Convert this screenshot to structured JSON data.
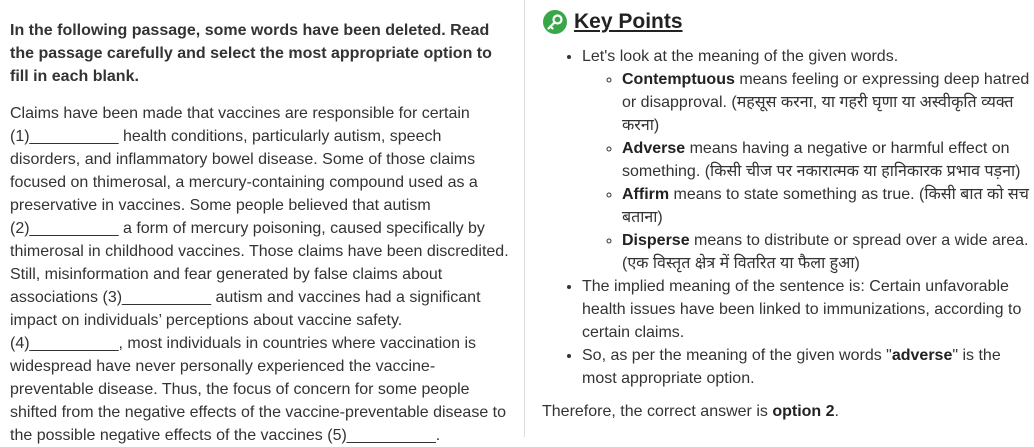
{
  "left": {
    "instruction": "In the following passage, some words have been deleted. Read the passage carefully and select the most appropriate option to fill in each blank.",
    "passage_lines": [
      "Claims have been made that vaccines are responsible for certain",
      "(1)__________ health conditions, particularly autism, speech",
      "disorders, and inflammatory bowel disease. Some of those claims",
      "focused on thimerosal, a mercury-containing compound used as a",
      "preservative in vaccines. Some people believed that autism",
      "(2)__________ a form of mercury poisoning, caused specifically by",
      "thimerosal in childhood vaccines. Those claims have been discredited.",
      "Still, misinformation and fear generated by false claims about",
      "associations (3)__________ autism and vaccines had a significant",
      "impact on individuals’ perceptions about vaccine safety.",
      "(4)__________, most individuals in countries where vaccination is",
      "widespread have never personally experienced the vaccine-",
      "preventable disease. Thus, the focus of concern for some people",
      "shifted from the negative effects of the vaccine-preventable disease to",
      "the possible negative effects of the vaccines (5)__________."
    ]
  },
  "key_points": {
    "title": "Key Points",
    "items": [
      {
        "segments": [
          {
            "text": "Let's look at the meaning of the given words."
          }
        ],
        "subitems": [
          {
            "segments": [
              {
                "text": "Contemptuous",
                "bold": true
              },
              {
                "text": " means feeling or expressing deep hatred or disapproval. (महसूस करना, या गहरी घृणा या अस्वीकृति व्यक्त करना)"
              }
            ]
          },
          {
            "segments": [
              {
                "text": "Adverse",
                "bold": true
              },
              {
                "text": " means having a negative or harmful effect on something. (किसी चीज पर नकारात्मक या हानिकारक प्रभाव पड़ना)"
              }
            ]
          },
          {
            "segments": [
              {
                "text": "Affirm",
                "bold": true
              },
              {
                "text": " means to state something as true. (किसी बात को सच बताना)"
              }
            ]
          },
          {
            "segments": [
              {
                "text": "Disperse",
                "bold": true
              },
              {
                "text": " means to distribute or spread over a wide area. (एक विस्तृत क्षेत्र में वितरित या फैला हुआ)"
              }
            ]
          }
        ]
      },
      {
        "segments": [
          {
            "text": "The implied meaning of the sentence is: Certain unfavorable health issues have been linked to immunizations, according to certain claims."
          }
        ]
      },
      {
        "segments": [
          {
            "text": "So, as per the meaning of the given words \""
          },
          {
            "text": "adverse",
            "bold": true
          },
          {
            "text": "\" is the most appropriate option."
          }
        ]
      }
    ],
    "conclusion": [
      {
        "text": "Therefore, the correct answer is "
      },
      {
        "text": "option 2",
        "bold": true
      },
      {
        "text": "."
      }
    ]
  }
}
